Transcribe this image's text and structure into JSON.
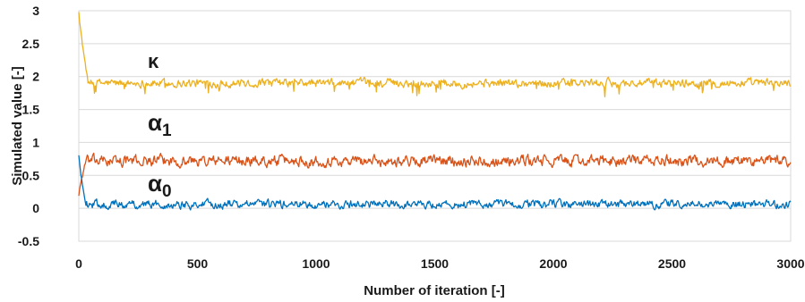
{
  "chart_data": {
    "type": "line",
    "xlabel": "Number of iteration [-]",
    "ylabel": "Simulated value [-]",
    "xlim": [
      0,
      3000
    ],
    "ylim": [
      -0.5,
      3
    ],
    "xticks": [
      0,
      500,
      1000,
      1500,
      2000,
      2500,
      3000
    ],
    "xtick_labels": [
      "0",
      "500",
      "1000",
      "1500",
      "2000",
      "2500",
      "3000"
    ],
    "yticks": [
      -0.5,
      0,
      0.5,
      1,
      1.5,
      2,
      2.5,
      3
    ],
    "ytick_labels": [
      "-0.5",
      "0",
      "0.5",
      "1",
      "1.5",
      "2",
      "2.5",
      "3"
    ],
    "grid": true,
    "legend": "none",
    "series": [
      {
        "label_main": "κ",
        "label_sub": "",
        "color": "#EDB120",
        "start": 3.0,
        "level": 1.9,
        "noise": 0.045,
        "dips": true,
        "burn_in": 40,
        "x": [
          0,
          40,
          3000
        ],
        "y": [
          3.0,
          1.9,
          1.9
        ]
      },
      {
        "label_main": "α",
        "label_sub": "1",
        "color": "#D95319",
        "start": 0.2,
        "level": 0.72,
        "noise": 0.06,
        "dips": false,
        "burn_in": 30,
        "x": [
          0,
          30,
          3000
        ],
        "y": [
          0.2,
          0.72,
          0.72
        ]
      },
      {
        "label_main": "α",
        "label_sub": "0",
        "color": "#0072BD",
        "start": 0.8,
        "level": 0.06,
        "noise": 0.045,
        "dips": false,
        "burn_in": 30,
        "x": [
          0,
          30,
          3000
        ],
        "y": [
          0.8,
          0.06,
          0.06
        ]
      }
    ]
  }
}
